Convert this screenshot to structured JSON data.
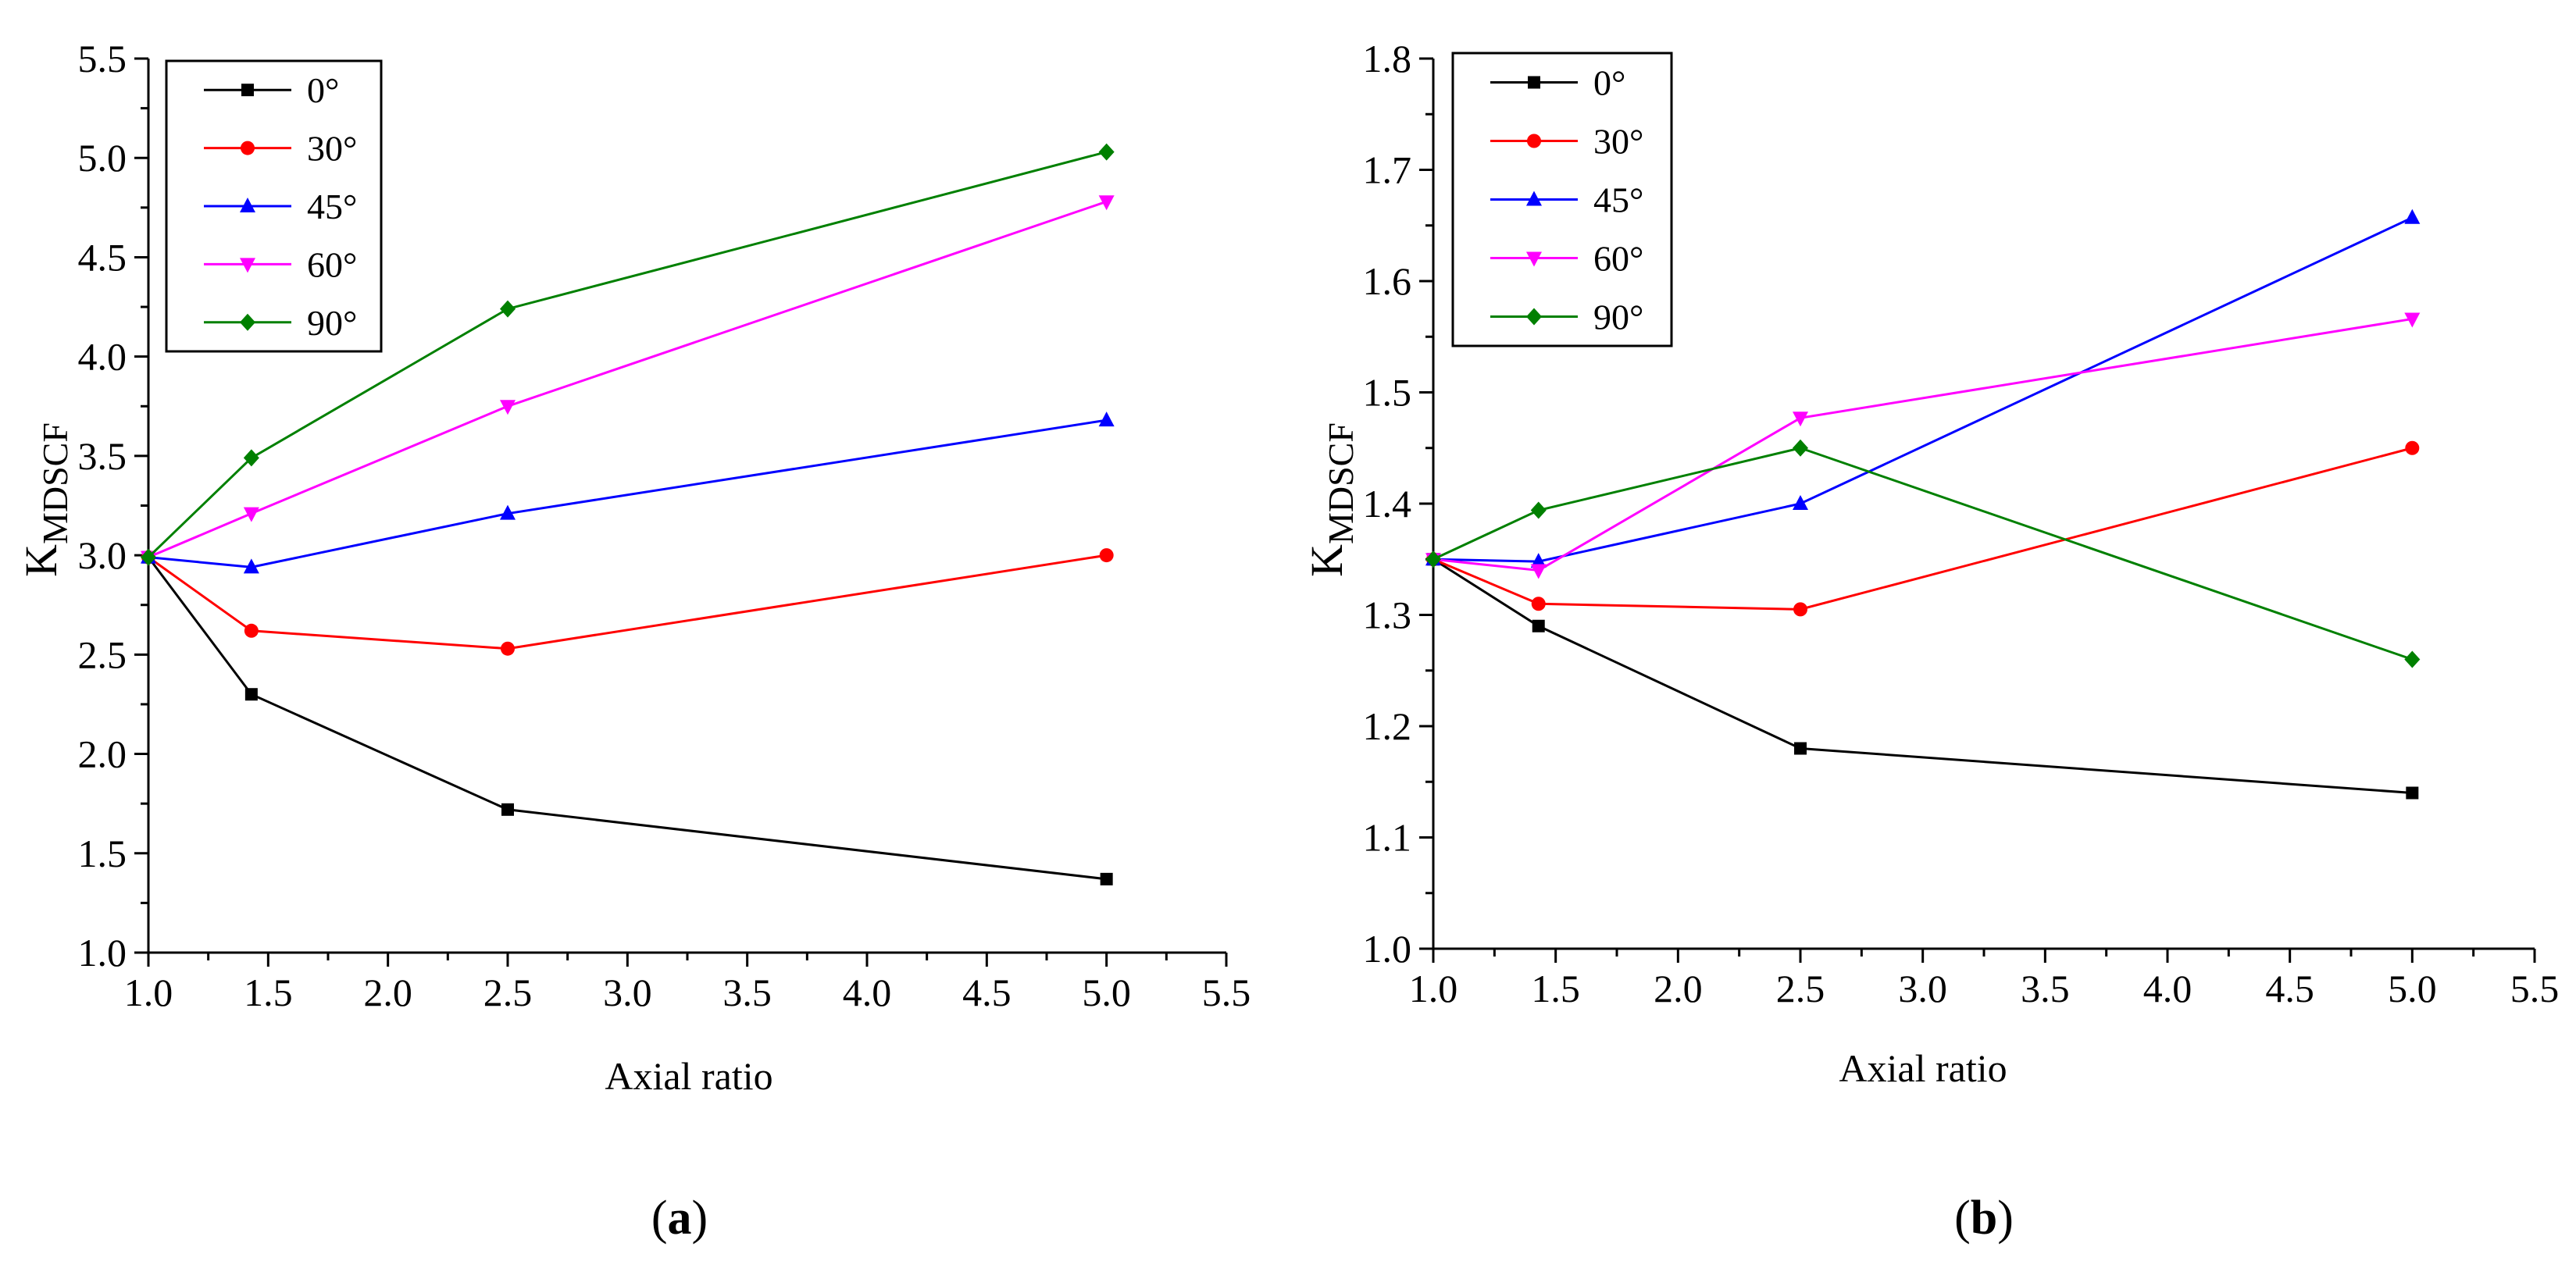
{
  "chart_data": [
    {
      "type": "line",
      "panel_label": "a",
      "xlabel": "Axial ratio",
      "ylabel_main": "K",
      "ylabel_sub": "MDSCF",
      "xlim": [
        1.0,
        5.5
      ],
      "ylim": [
        1.0,
        5.5
      ],
      "xticks": [
        "1.0",
        "1.5",
        "2.0",
        "2.5",
        "3.0",
        "3.5",
        "4.0",
        "4.5",
        "5.0",
        "5.5"
      ],
      "yticks": [
        "1.0",
        "1.5",
        "2.0",
        "2.5",
        "3.0",
        "3.5",
        "4.0",
        "4.5",
        "5.0",
        "5.5"
      ],
      "legend_position": "top-left",
      "x": [
        1.0,
        1.43,
        2.5,
        5.0
      ],
      "series": [
        {
          "name": "0°",
          "color": "#000000",
          "marker": "square",
          "values": [
            2.99,
            2.3,
            1.72,
            1.37
          ]
        },
        {
          "name": "30°",
          "color": "#ff0000",
          "marker": "circle",
          "values": [
            2.99,
            2.62,
            2.53,
            3.0
          ]
        },
        {
          "name": "45°",
          "color": "#0000ff",
          "marker": "triangle-up",
          "values": [
            2.99,
            2.94,
            3.21,
            3.68
          ]
        },
        {
          "name": "60°",
          "color": "#ff00ff",
          "marker": "triangle-down",
          "values": [
            2.99,
            3.21,
            3.75,
            4.78
          ]
        },
        {
          "name": "90°",
          "color": "#008000",
          "marker": "diamond",
          "values": [
            2.99,
            3.49,
            4.24,
            5.03
          ]
        }
      ]
    },
    {
      "type": "line",
      "panel_label": "b",
      "xlabel": "Axial ratio",
      "ylabel_main": "K",
      "ylabel_sub": "MDSCF",
      "xlim": [
        1.0,
        5.5
      ],
      "ylim": [
        1.0,
        1.8
      ],
      "xticks": [
        "1.0",
        "1.5",
        "2.0",
        "2.5",
        "3.0",
        "3.5",
        "4.0",
        "4.5",
        "5.0",
        "5.5"
      ],
      "yticks": [
        "1.0",
        "1.1",
        "1.2",
        "1.3",
        "1.4",
        "1.5",
        "1.6",
        "1.7",
        "1.8"
      ],
      "legend_position": "top-left",
      "x": [
        1.0,
        1.43,
        2.5,
        5.0
      ],
      "series": [
        {
          "name": "0°",
          "color": "#000000",
          "marker": "square",
          "values": [
            1.35,
            1.29,
            1.18,
            1.14
          ]
        },
        {
          "name": "30°",
          "color": "#ff0000",
          "marker": "circle",
          "values": [
            1.35,
            1.31,
            1.305,
            1.45
          ]
        },
        {
          "name": "45°",
          "color": "#0000ff",
          "marker": "triangle-up",
          "values": [
            1.35,
            1.348,
            1.4,
            1.657
          ]
        },
        {
          "name": "60°",
          "color": "#ff00ff",
          "marker": "triangle-down",
          "values": [
            1.35,
            1.34,
            1.477,
            1.566
          ]
        },
        {
          "name": "90°",
          "color": "#008000",
          "marker": "diamond",
          "values": [
            1.35,
            1.394,
            1.45,
            1.26
          ]
        }
      ]
    }
  ]
}
